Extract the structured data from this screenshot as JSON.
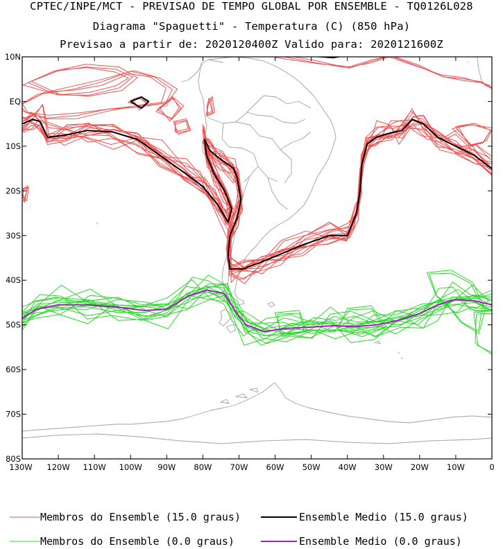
{
  "header": {
    "line1": "CPTEC/INPE/MCT - PREVISAO DE TEMPO GLOBAL POR ENSEMBLE - TQ0126L028",
    "line2": "Diagrama \"Spaguetti\" - Temperatura (C) (850 hPa)",
    "line3": "Previsao a partir de: 2020120400Z  Valido para: 2020121600Z"
  },
  "axes": {
    "lat_labels": [
      "10N",
      "EQ",
      "10S",
      "20S",
      "30S",
      "40S",
      "50S",
      "60S",
      "70S",
      "80S"
    ],
    "lat_values": [
      10,
      0,
      -10,
      -20,
      -30,
      -40,
      -50,
      -60,
      -70,
      -80
    ],
    "lon_labels": [
      "130W",
      "120W",
      "110W",
      "100W",
      "90W",
      "80W",
      "70W",
      "60W",
      "50W",
      "40W",
      "30W",
      "20W",
      "10W",
      "0"
    ],
    "lon_values": [
      -130,
      -120,
      -110,
      -100,
      -90,
      -80,
      -70,
      -60,
      -50,
      -40,
      -30,
      -20,
      -10,
      0
    ],
    "lon_range": [
      -130,
      0
    ],
    "lat_range": [
      -80,
      10
    ]
  },
  "colors": {
    "member_15": "#f05050",
    "mean_15": "#000000",
    "member_0": "#28d828",
    "mean_0": "#a020c0",
    "coast": "#a0a0a0"
  },
  "legend": {
    "item1": "Membros do Ensemble (15.0 graus)",
    "item2": "Ensemble Medio (15.0 graus)",
    "item3": "Membros do Ensemble (0.0 graus)",
    "item4": "Ensemble Medio (0.0 graus)"
  },
  "chart_data": {
    "type": "contour-spaghetti",
    "mean_15C": [
      [
        -130,
        -5
      ],
      [
        -127,
        -4
      ],
      [
        -125,
        -4.5
      ],
      [
        -123,
        -8
      ],
      [
        -118,
        -7.5
      ],
      [
        -112,
        -6.5
      ],
      [
        -105,
        -6.8
      ],
      [
        -98,
        -8.5
      ],
      [
        -92,
        -12
      ],
      [
        -85,
        -16
      ],
      [
        -80,
        -19
      ],
      [
        -76,
        -23
      ],
      [
        -73,
        -27
      ],
      [
        -72,
        -24
      ],
      [
        -74,
        -20
      ],
      [
        -77,
        -16
      ],
      [
        -79,
        -12
      ],
      [
        -79.5,
        -8.5
      ],
      [
        -78,
        -11
      ],
      [
        -75,
        -13
      ],
      [
        -71.5,
        -15
      ],
      [
        -70.5,
        -17
      ],
      [
        -69.5,
        -22
      ],
      [
        -70.5,
        -26
      ],
      [
        -72.5,
        -30
      ],
      [
        -73,
        -34
      ],
      [
        -72.5,
        -37.5
      ],
      [
        -69,
        -37.5
      ],
      [
        -64,
        -36
      ],
      [
        -58,
        -34
      ],
      [
        -52,
        -32
      ],
      [
        -45,
        -30
      ],
      [
        -40,
        -30
      ],
      [
        -37.5,
        -25
      ],
      [
        -36.5,
        -20
      ],
      [
        -36,
        -14
      ],
      [
        -34.5,
        -9.5
      ],
      [
        -32,
        -8
      ],
      [
        -28,
        -7
      ],
      [
        -25,
        -6.5
      ],
      [
        -22,
        -4
      ],
      [
        -19,
        -5
      ],
      [
        -15,
        -8
      ],
      [
        -10,
        -10
      ],
      [
        -5,
        -12
      ],
      [
        0,
        -15
      ]
    ],
    "mean_0C": [
      [
        -130,
        -48.5
      ],
      [
        -126,
        -46.5
      ],
      [
        -120,
        -45.5
      ],
      [
        -112,
        -45.5
      ],
      [
        -104,
        -46
      ],
      [
        -96,
        -46.8
      ],
      [
        -90,
        -46.5
      ],
      [
        -84,
        -43.5
      ],
      [
        -79,
        -42.2
      ],
      [
        -74,
        -43
      ],
      [
        -71,
        -47
      ],
      [
        -68,
        -50
      ],
      [
        -63,
        -51.5
      ],
      [
        -57,
        -50.8
      ],
      [
        -50,
        -50.5
      ],
      [
        -44,
        -50.2
      ],
      [
        -38,
        -50.4
      ],
      [
        -32,
        -50
      ],
      [
        -26,
        -49
      ],
      [
        -20,
        -47.5
      ],
      [
        -15,
        -45.5
      ],
      [
        -10,
        -44.3
      ],
      [
        -5,
        -44.6
      ],
      [
        0,
        -45.5
      ]
    ]
  }
}
